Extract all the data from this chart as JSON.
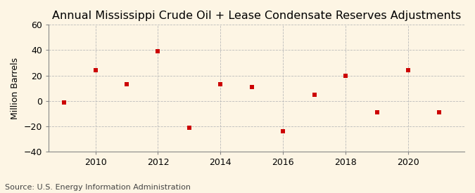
{
  "title": "Annual Mississippi Crude Oil + Lease Condensate Reserves Adjustments",
  "ylabel": "Million Barrels",
  "source": "Source: U.S. Energy Information Administration",
  "background_color": "#fdf5e4",
  "plot_bg_color": "#fdf5e4",
  "years": [
    2009,
    2010,
    2011,
    2012,
    2013,
    2014,
    2015,
    2016,
    2017,
    2018,
    2019,
    2020,
    2021
  ],
  "values": [
    -1.0,
    24.0,
    13.0,
    39.0,
    -21.0,
    13.0,
    11.0,
    -24.0,
    5.0,
    20.0,
    -9.0,
    24.0,
    -9.0
  ],
  "marker_color": "#cc0000",
  "marker_size": 18,
  "xlim": [
    2008.5,
    2021.8
  ],
  "ylim": [
    -40,
    60
  ],
  "yticks": [
    -40,
    -20,
    0,
    20,
    40,
    60
  ],
  "xticks": [
    2010,
    2012,
    2014,
    2016,
    2018,
    2020
  ],
  "grid_color": "#bbbbbb",
  "title_fontsize": 11.5,
  "axis_fontsize": 9,
  "ylabel_fontsize": 9,
  "source_fontsize": 8
}
